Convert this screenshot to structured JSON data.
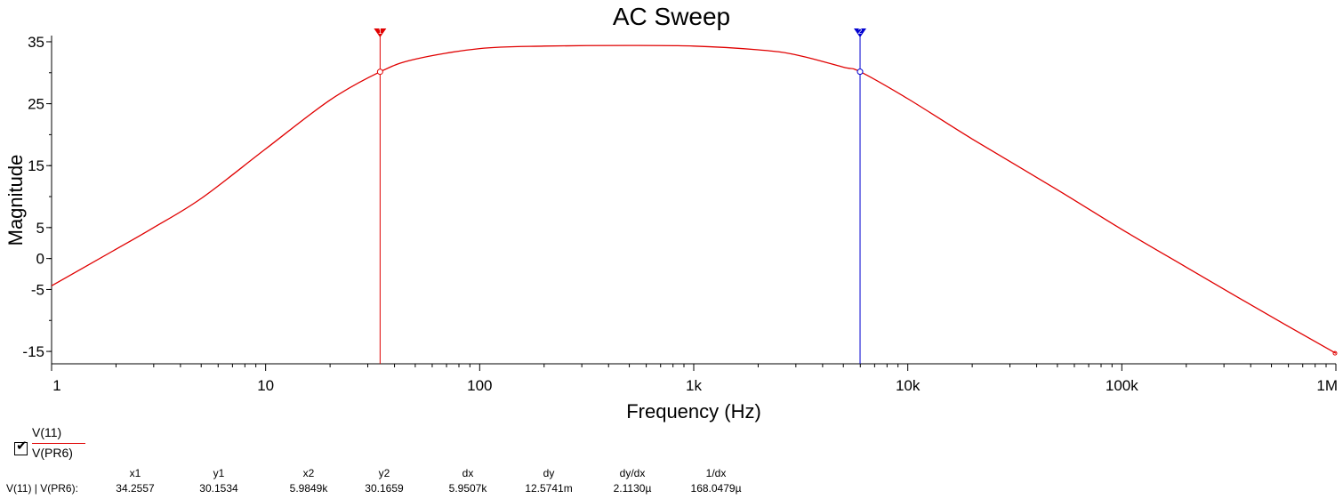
{
  "chart_data": {
    "type": "line",
    "title": "AC Sweep",
    "xlabel": "Frequency (Hz)",
    "ylabel": "Magnitude",
    "xscale": "log",
    "xlim": [
      1,
      1000000
    ],
    "ylim": [
      -17,
      36
    ],
    "x_ticks": [
      {
        "value": 1,
        "label": "1"
      },
      {
        "value": 10,
        "label": "10"
      },
      {
        "value": 100,
        "label": "100"
      },
      {
        "value": 1000,
        "label": "1k"
      },
      {
        "value": 10000,
        "label": "10k"
      },
      {
        "value": 100000,
        "label": "100k"
      },
      {
        "value": 1000000,
        "label": "1M"
      }
    ],
    "y_ticks": [
      {
        "value": 35,
        "label": "35"
      },
      {
        "value": 25,
        "label": "25"
      },
      {
        "value": 15,
        "label": "15"
      },
      {
        "value": 5,
        "label": "5"
      },
      {
        "value": 0,
        "label": "0"
      },
      {
        "value": -5,
        "label": "-5"
      },
      {
        "value": -15,
        "label": "-15"
      }
    ],
    "grid": false,
    "series": [
      {
        "name": "V(11) / V(PR6)",
        "color": "#e00000",
        "x": [
          1,
          2,
          3,
          5,
          10,
          20,
          34.2557,
          50,
          100,
          200,
          500,
          1000,
          2000,
          3000,
          5000,
          5984.9,
          10000,
          20000,
          50000,
          100000,
          200000,
          500000,
          1000000
        ],
        "y": [
          -4.4,
          1.5,
          5.0,
          9.7,
          17.7,
          25.6,
          30.15,
          32.2,
          33.9,
          34.3,
          34.4,
          34.3,
          33.7,
          32.9,
          30.9,
          30.17,
          25.8,
          19.3,
          11.1,
          4.7,
          -1.4,
          -9.4,
          -15.3
        ]
      }
    ],
    "cursors": [
      {
        "x": 34.2557,
        "y": 30.1534,
        "color": "#e00000",
        "label": "1"
      },
      {
        "x": 5984.9,
        "y": 30.1659,
        "color": "#0000d0",
        "label": "2"
      }
    ]
  },
  "legend": {
    "numerator": "V(11)",
    "denominator": "V(PR6)",
    "checked": "✔"
  },
  "cursor_table": {
    "row_label": "V(11) | V(PR6):",
    "columns": [
      {
        "header": "x1",
        "value": "34.2557"
      },
      {
        "header": "y1",
        "value": "30.1534"
      },
      {
        "header": "x2",
        "value": "5.9849k"
      },
      {
        "header": "y2",
        "value": "30.1659"
      },
      {
        "header": "dx",
        "value": "5.9507k"
      },
      {
        "header": "dy",
        "value": "12.5741m"
      },
      {
        "header": "dy/dx",
        "value": "2.1130µ"
      },
      {
        "header": "1/dx",
        "value": "168.0479µ"
      }
    ]
  }
}
